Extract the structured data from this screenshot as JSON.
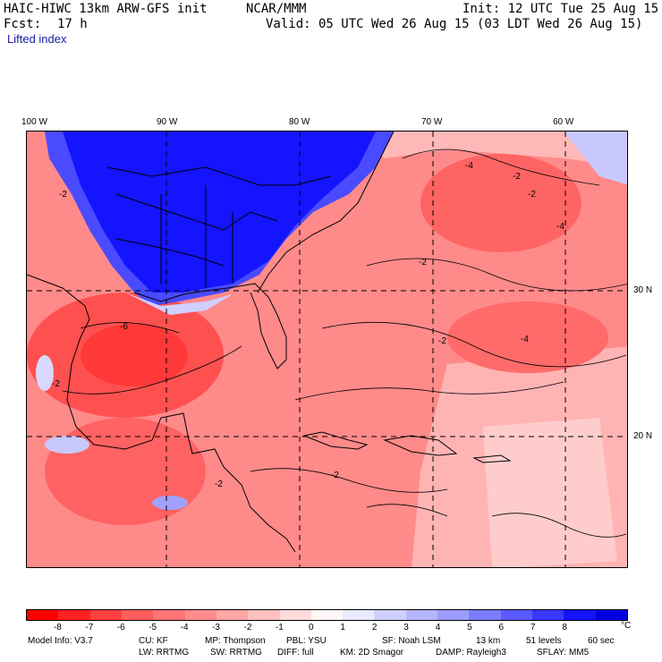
{
  "header": {
    "model": "HAIC-HIWC 13km ARW-GFS init",
    "center": "NCAR/MMM",
    "init": "Init: 12 UTC Tue 25 Aug 15",
    "fcst_label": "Fcst:",
    "fcst_value": "17 h",
    "valid": "Valid: 05 UTC Wed 26 Aug 15 (03 LDT Wed 26 Aug 15)",
    "field": "Lifted index"
  },
  "map": {
    "lon_labels": [
      "100 W",
      "90 W",
      "80 W",
      "70 W",
      "60 W"
    ],
    "lat_labels": [
      "30 N",
      "20 N"
    ],
    "contour_labels": [
      "-2",
      "-2",
      "-4",
      "-2",
      "-4",
      "-2",
      "-6",
      "-2",
      "-4",
      "-2",
      "-2",
      "-2"
    ]
  },
  "colorbar": {
    "ticks": [
      "-8",
      "-7",
      "-6",
      "-5",
      "-4",
      "-3",
      "-2",
      "-1",
      "0",
      "1",
      "2",
      "3",
      "4",
      "5",
      "6",
      "7",
      "8"
    ],
    "unit": "°C",
    "colors": [
      "#ff0000",
      "#ff2020",
      "#ff4040",
      "#ff5c5c",
      "#ff7474",
      "#ff8c8c",
      "#ffa6a6",
      "#ffc0c0",
      "#ffdcdc",
      "#fff6f6",
      "#eaeaff",
      "#d0d0ff",
      "#b6b6ff",
      "#9c9cff",
      "#7c7cff",
      "#5a5aff",
      "#3838ff",
      "#1414ff",
      "#0000e0"
    ]
  },
  "footer": {
    "line1": [
      "Model Info: V3.7",
      "CU: KF",
      "MP: Thompson",
      "PBL: YSU",
      "SF: Noah LSM",
      "13 km",
      "51 levels",
      "60 sec"
    ],
    "line2": [
      "LW: RRTMG",
      "SW: RRTMG",
      "DIFF: full",
      "KM: 2D Smagor",
      "DAMP: Rayleigh3",
      "SFLAY: MM5"
    ]
  }
}
